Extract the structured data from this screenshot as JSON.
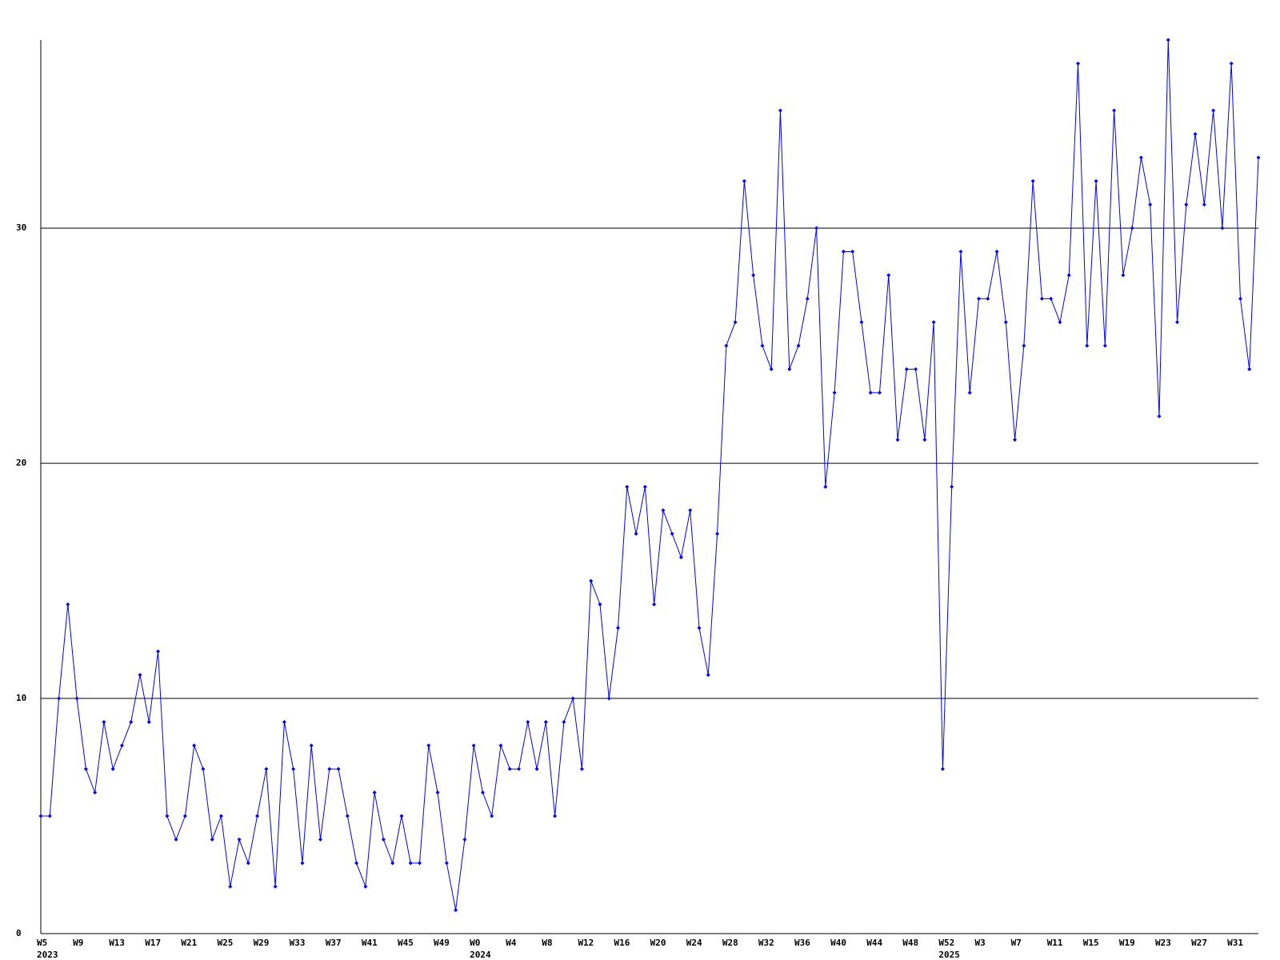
{
  "chart_data": {
    "type": "line",
    "categories": [
      "W5",
      null,
      null,
      null,
      "W9",
      null,
      null,
      null,
      "W13",
      null,
      null,
      null,
      "W17",
      null,
      null,
      null,
      "W21",
      null,
      null,
      null,
      "W25",
      null,
      null,
      null,
      "W29",
      null,
      null,
      null,
      "W33",
      null,
      null,
      null,
      "W37",
      null,
      null,
      null,
      "W41",
      null,
      null,
      null,
      "W45",
      null,
      null,
      null,
      "W49",
      null,
      null,
      null,
      "W0",
      null,
      null,
      null,
      "W4",
      null,
      null,
      null,
      "W8",
      null,
      null,
      null,
      "W12",
      null,
      null,
      null,
      "W16",
      null,
      null,
      null,
      "W20",
      null,
      null,
      null,
      "W24",
      null,
      null,
      null,
      "W28",
      null,
      null,
      null,
      "W32",
      null,
      null,
      null,
      "W36",
      null,
      null,
      null,
      "W40",
      null,
      null,
      null,
      "W44",
      null,
      null,
      null,
      "W48",
      null,
      null,
      null,
      "W52",
      null,
      null,
      null,
      "W3",
      null,
      null,
      null,
      "W7",
      null,
      null,
      null,
      "W11",
      null,
      null,
      null,
      "W15",
      null,
      null,
      null,
      "W19",
      null,
      null,
      null,
      "W23",
      null,
      null,
      null,
      "W27",
      null,
      null,
      null,
      "W31",
      null,
      null,
      null
    ],
    "year_labels": [
      "2023",
      null,
      null,
      null,
      null,
      null,
      null,
      null,
      null,
      null,
      null,
      null,
      null,
      null,
      null,
      null,
      null,
      null,
      null,
      null,
      null,
      null,
      null,
      null,
      null,
      null,
      null,
      null,
      null,
      null,
      null,
      null,
      null,
      null,
      null,
      null,
      null,
      null,
      null,
      null,
      null,
      null,
      null,
      null,
      null,
      null,
      null,
      null,
      "2024",
      null,
      null,
      null,
      null,
      null,
      null,
      null,
      null,
      null,
      null,
      null,
      null,
      null,
      null,
      null,
      null,
      null,
      null,
      null,
      null,
      null,
      null,
      null,
      null,
      null,
      null,
      null,
      null,
      null,
      null,
      null,
      null,
      null,
      null,
      null,
      null,
      null,
      null,
      null,
      null,
      null,
      null,
      null,
      null,
      null,
      null,
      null,
      null,
      null,
      null,
      null,
      "2025",
      null,
      null,
      null,
      null,
      null,
      null,
      null,
      null,
      null,
      null,
      null,
      null,
      null,
      null,
      null,
      null,
      null,
      null,
      null,
      null,
      null,
      null,
      null,
      null,
      null,
      null,
      null,
      null,
      null,
      null,
      null,
      null,
      null,
      null,
      null
    ],
    "series": [
      {
        "color": "#0000ff",
        "values": [
          5,
          5,
          10,
          14,
          10,
          7,
          6,
          9,
          7,
          8,
          9,
          11,
          9,
          12,
          5,
          4,
          5,
          8,
          7,
          4,
          5,
          2,
          4,
          3,
          5,
          7,
          2,
          9,
          7,
          3,
          8,
          4,
          7,
          7,
          5,
          3,
          2,
          6,
          4,
          3,
          5,
          3,
          3,
          8,
          6,
          3,
          1,
          4,
          8,
          6,
          5,
          8,
          7,
          7,
          9,
          7,
          9,
          5,
          9,
          10,
          7,
          15,
          14,
          10,
          13,
          19,
          17,
          19,
          14,
          18,
          17,
          16,
          18,
          13,
          11,
          17,
          25,
          26,
          32,
          28,
          25,
          24,
          35,
          24,
          25,
          27,
          30,
          19,
          23,
          29,
          29,
          26,
          23,
          23,
          28,
          21,
          24,
          24,
          21,
          26,
          7,
          19,
          29,
          23,
          27,
          27,
          29,
          26,
          21,
          25,
          32,
          27,
          27,
          26,
          28,
          37,
          25,
          32,
          25,
          35,
          28,
          30,
          33,
          31,
          22,
          38,
          26,
          31,
          34,
          31,
          35,
          30,
          37,
          27,
          24,
          33
        ]
      }
    ],
    "ylim": [
      0,
      38
    ],
    "yticks": [
      0,
      10,
      20,
      30
    ],
    "grid": true
  }
}
